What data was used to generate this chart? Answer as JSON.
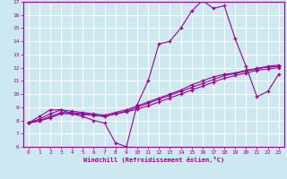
{
  "xlabel": "Windchill (Refroidissement éolien,°C)",
  "bg_color": "#cce8f0",
  "line_color": "#990099",
  "grid_color": "#ffffff",
  "xlim": [
    -0.5,
    23.5
  ],
  "ylim": [
    6,
    17
  ],
  "xticks": [
    0,
    1,
    2,
    3,
    4,
    5,
    6,
    7,
    8,
    9,
    10,
    11,
    12,
    13,
    14,
    15,
    16,
    17,
    18,
    19,
    20,
    21,
    22,
    23
  ],
  "yticks": [
    6,
    7,
    8,
    9,
    10,
    11,
    12,
    13,
    14,
    15,
    16,
    17
  ],
  "line1_x": [
    0,
    1,
    2,
    3,
    4,
    5,
    6,
    7,
    8,
    9,
    10,
    11,
    12,
    13,
    14,
    15,
    16,
    17,
    18,
    19,
    20,
    21,
    22,
    23
  ],
  "line1_y": [
    7.8,
    8.3,
    8.8,
    8.8,
    8.5,
    8.3,
    8.0,
    7.8,
    6.3,
    6.0,
    9.2,
    11.0,
    13.8,
    14.0,
    15.0,
    16.3,
    17.1,
    16.5,
    16.7,
    14.2,
    12.1,
    9.8,
    10.2,
    11.5
  ],
  "line2_x": [
    0,
    1,
    2,
    3,
    4,
    5,
    6,
    7,
    8,
    9,
    10,
    11,
    12,
    13,
    14,
    15,
    16,
    17,
    18,
    19,
    20,
    21,
    22,
    23
  ],
  "line2_y": [
    7.8,
    8.1,
    8.5,
    8.8,
    8.7,
    8.6,
    8.5,
    8.4,
    8.6,
    8.8,
    9.1,
    9.4,
    9.7,
    10.0,
    10.3,
    10.7,
    11.0,
    11.3,
    11.5,
    11.6,
    11.8,
    11.95,
    12.1,
    12.2
  ],
  "line3_x": [
    0,
    1,
    2,
    3,
    4,
    5,
    6,
    7,
    8,
    9,
    10,
    11,
    12,
    13,
    14,
    15,
    16,
    17,
    18,
    19,
    20,
    21,
    22,
    23
  ],
  "line3_y": [
    7.8,
    8.0,
    8.3,
    8.6,
    8.6,
    8.5,
    8.4,
    8.3,
    8.5,
    8.7,
    9.0,
    9.3,
    9.6,
    9.9,
    10.2,
    10.5,
    10.8,
    11.1,
    11.4,
    11.55,
    11.75,
    11.9,
    12.05,
    12.1
  ],
  "line4_x": [
    0,
    1,
    2,
    3,
    4,
    5,
    6,
    7,
    8,
    9,
    10,
    11,
    12,
    13,
    14,
    15,
    16,
    17,
    18,
    19,
    20,
    21,
    22,
    23
  ],
  "line4_y": [
    7.8,
    7.95,
    8.2,
    8.5,
    8.5,
    8.45,
    8.4,
    8.3,
    8.5,
    8.65,
    8.85,
    9.1,
    9.4,
    9.7,
    10.0,
    10.3,
    10.6,
    10.9,
    11.2,
    11.4,
    11.6,
    11.8,
    11.9,
    12.0
  ]
}
